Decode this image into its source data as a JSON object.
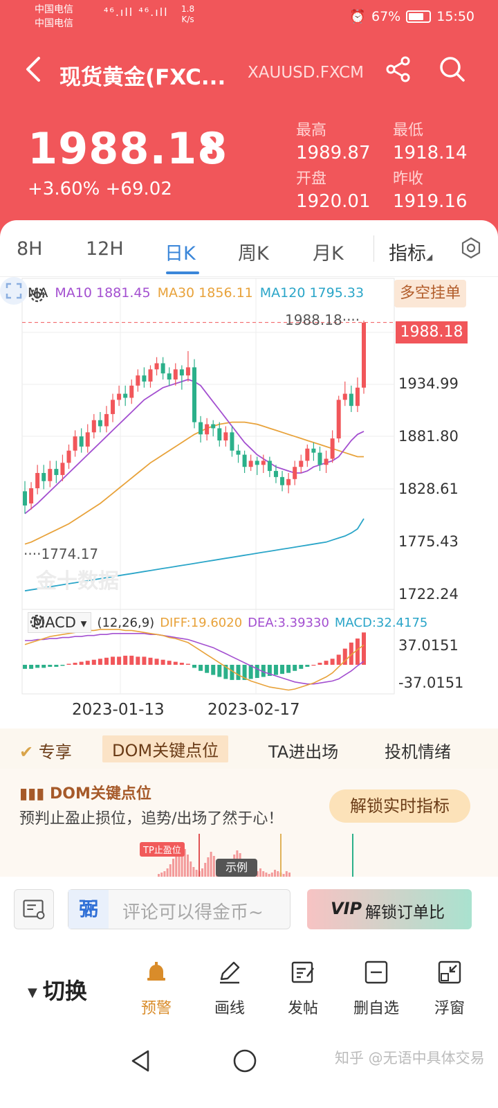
{
  "status": {
    "carrier1": "中国电信",
    "carrier2": "中国电信",
    "hd": "HD",
    "signal": "⁴⁶.ıll ⁴⁶.ıll",
    "speed_value": "1.8",
    "speed_unit": "K/s",
    "battery": "67%",
    "time": "15:50"
  },
  "header": {
    "title": "现货黄金(FXC...",
    "code": "XAUUSD.FXCM",
    "price": "1988.18",
    "change": "+3.60% +69.02",
    "stats": {
      "high_label": "最高",
      "high": "1989.87",
      "low_label": "最低",
      "low": "1918.14",
      "open_label": "开盘",
      "open": "1920.01",
      "prev_label": "昨收",
      "prev": "1919.16"
    }
  },
  "tabs": [
    "8H",
    "12H",
    "日K",
    "周K",
    "月K"
  ],
  "active_tab": "日K",
  "indicator_tab": "指标",
  "chart": {
    "ma_label": "MA",
    "ma10": "MA10 1881.45",
    "ma30": "MA30 1856.11",
    "ma120": "MA120 1795.33",
    "dk_button": "多空挂单",
    "last_price_tag": "1988.18",
    "high_marker": "1988.18",
    "low_marker": "1774.17",
    "watermark": "金十数据",
    "axis": [
      "1934.99",
      "1881.80",
      "1828.61",
      "1775.43",
      "1722.24"
    ],
    "macd_label": "MACD",
    "macd_params": "(12,26,9)",
    "diff": "DIFF:19.6020",
    "dea": "DEA:3.39330",
    "macd_value": "MACD:32.4175",
    "macd_axis_top": "37.0151",
    "macd_axis_bottom": "-37.0151",
    "dates": [
      "2023-01-13",
      "2023-02-17"
    ],
    "colors": {
      "up": "#f1565a",
      "down": "#2bb08a",
      "ma10": "#a34fd0",
      "ma30": "#e8a23a",
      "ma120": "#2aa5c8"
    }
  },
  "chart_data": {
    "type": "candlestick",
    "candles": [
      [
        1822,
        1808,
        1832,
        1800
      ],
      [
        1810,
        1825,
        1831,
        1804
      ],
      [
        1825,
        1840,
        1848,
        1819
      ],
      [
        1840,
        1832,
        1848,
        1824
      ],
      [
        1832,
        1844,
        1852,
        1826
      ],
      [
        1844,
        1838,
        1852,
        1830
      ],
      [
        1838,
        1850,
        1858,
        1832
      ],
      [
        1850,
        1862,
        1868,
        1844
      ],
      [
        1862,
        1876,
        1882,
        1856
      ],
      [
        1876,
        1866,
        1884,
        1860
      ],
      [
        1866,
        1880,
        1888,
        1860
      ],
      [
        1880,
        1892,
        1898,
        1874
      ],
      [
        1892,
        1886,
        1900,
        1880
      ],
      [
        1886,
        1898,
        1906,
        1880
      ],
      [
        1898,
        1912,
        1918,
        1890
      ],
      [
        1912,
        1918,
        1926,
        1906
      ],
      [
        1918,
        1914,
        1926,
        1906
      ],
      [
        1914,
        1926,
        1932,
        1908
      ],
      [
        1926,
        1936,
        1942,
        1920
      ],
      [
        1936,
        1930,
        1944,
        1924
      ],
      [
        1930,
        1942,
        1946,
        1924
      ],
      [
        1942,
        1948,
        1954,
        1936
      ],
      [
        1948,
        1938,
        1954,
        1932
      ],
      [
        1938,
        1932,
        1944,
        1926
      ],
      [
        1932,
        1942,
        1948,
        1926
      ],
      [
        1942,
        1936,
        1946,
        1922
      ],
      [
        1936,
        1944,
        1960,
        1930
      ],
      [
        1944,
        1890,
        1952,
        1884
      ],
      [
        1890,
        1878,
        1896,
        1870
      ],
      [
        1878,
        1888,
        1894,
        1872
      ],
      [
        1888,
        1884,
        1892,
        1876
      ],
      [
        1884,
        1872,
        1890,
        1866
      ],
      [
        1872,
        1880,
        1886,
        1866
      ],
      [
        1880,
        1862,
        1886,
        1856
      ],
      [
        1862,
        1858,
        1868,
        1850
      ],
      [
        1858,
        1846,
        1862,
        1840
      ],
      [
        1846,
        1852,
        1858,
        1842
      ],
      [
        1852,
        1848,
        1856,
        1838
      ],
      [
        1848,
        1852,
        1858,
        1840
      ],
      [
        1852,
        1842,
        1856,
        1836
      ],
      [
        1842,
        1836,
        1848,
        1830
      ],
      [
        1836,
        1828,
        1842,
        1822
      ],
      [
        1828,
        1834,
        1840,
        1820
      ],
      [
        1834,
        1846,
        1852,
        1828
      ],
      [
        1846,
        1852,
        1858,
        1840
      ],
      [
        1852,
        1864,
        1868,
        1846
      ],
      [
        1864,
        1860,
        1870,
        1852
      ],
      [
        1860,
        1848,
        1866,
        1842
      ],
      [
        1848,
        1854,
        1862,
        1840
      ],
      [
        1854,
        1874,
        1882,
        1850
      ],
      [
        1874,
        1912,
        1916,
        1870
      ],
      [
        1912,
        1918,
        1930,
        1906
      ],
      [
        1918,
        1906,
        1926,
        1900
      ],
      [
        1906,
        1924,
        1934,
        1900
      ],
      [
        1924,
        1988,
        1990,
        1918
      ]
    ],
    "ma10": [
      1800,
      1805,
      1810,
      1816,
      1822,
      1828,
      1834,
      1840,
      1846,
      1852,
      1858,
      1864,
      1870,
      1876,
      1882,
      1888,
      1894,
      1900,
      1906,
      1912,
      1916,
      1920,
      1924,
      1926,
      1928,
      1930,
      1932,
      1930,
      1926,
      1918,
      1910,
      1902,
      1894,
      1886,
      1878,
      1870,
      1864,
      1858,
      1854,
      1850,
      1846,
      1844,
      1842,
      1840,
      1840,
      1842,
      1846,
      1848,
      1850,
      1852,
      1856,
      1864,
      1872,
      1878,
      1881
    ],
    "ma30": [
      1770,
      1772,
      1775,
      1778,
      1781,
      1784,
      1787,
      1790,
      1794,
      1798,
      1802,
      1806,
      1810,
      1815,
      1820,
      1825,
      1830,
      1835,
      1840,
      1845,
      1850,
      1854,
      1858,
      1862,
      1866,
      1870,
      1874,
      1878,
      1881,
      1884,
      1886,
      1888,
      1889,
      1890,
      1890,
      1890,
      1889,
      1888,
      1886,
      1884,
      1882,
      1880,
      1878,
      1876,
      1874,
      1872,
      1870,
      1868,
      1866,
      1864,
      1862,
      1860,
      1858,
      1856,
      1856
    ],
    "ma120": [
      1724,
      1725,
      1726,
      1727,
      1728,
      1729,
      1730,
      1731,
      1732,
      1733,
      1734,
      1735,
      1736,
      1737,
      1738,
      1739,
      1740,
      1741,
      1742,
      1743,
      1744,
      1745,
      1746,
      1747,
      1748,
      1749,
      1750,
      1751,
      1752,
      1753,
      1754,
      1755,
      1756,
      1757,
      1758,
      1759,
      1760,
      1761,
      1762,
      1763,
      1764,
      1765,
      1766,
      1767,
      1768,
      1769,
      1770,
      1771,
      1772,
      1774,
      1776,
      1778,
      1781,
      1785,
      1795
    ],
    "macd_hist": [
      -4,
      -4,
      -3,
      -3,
      -2,
      -2,
      -1,
      1,
      2,
      3,
      4,
      5,
      6,
      7,
      8,
      8,
      9,
      9,
      8,
      8,
      7,
      6,
      5,
      4,
      3,
      2,
      1,
      -3,
      -6,
      -8,
      -10,
      -12,
      -14,
      -15,
      -15,
      -15,
      -14,
      -13,
      -12,
      -11,
      -10,
      -9,
      -8,
      -6,
      -4,
      -2,
      0,
      2,
      4,
      6,
      10,
      16,
      22,
      26,
      32
    ],
    "diff": [
      20,
      22,
      24,
      26,
      28,
      29,
      30,
      31,
      32,
      33,
      34,
      34,
      35,
      35,
      35,
      35,
      34,
      34,
      33,
      32,
      31,
      30,
      29,
      27,
      26,
      24,
      22,
      18,
      14,
      10,
      6,
      2,
      -2,
      -6,
      -10,
      -13,
      -16,
      -18,
      -20,
      -22,
      -23,
      -24,
      -25,
      -24,
      -22,
      -20,
      -18,
      -15,
      -12,
      -8,
      -2,
      4,
      10,
      15,
      19.6
    ],
    "dea": [
      24,
      24,
      25,
      25,
      26,
      26,
      27,
      27,
      28,
      28,
      29,
      29,
      30,
      30,
      31,
      31,
      31,
      31,
      31,
      31,
      30,
      30,
      29,
      28,
      27,
      26,
      25,
      23,
      21,
      19,
      17,
      14,
      11,
      8,
      5,
      2,
      -1,
      -4,
      -7,
      -9,
      -11,
      -13,
      -15,
      -17,
      -18,
      -19,
      -19,
      -18,
      -17,
      -16,
      -14,
      -10,
      -6,
      -1,
      3.4
    ]
  },
  "features": {
    "exclusive": "专享",
    "dom": "DOM关键点位",
    "ta": "TA进出场",
    "sentiment": "投机情绪"
  },
  "dom_panel": {
    "title": "DOM关键点位",
    "desc": "预判止盈止损位，追势/出场了然于心！",
    "unlock": "解锁实时指标",
    "tp_badge": "TP止盈位",
    "example": "示例"
  },
  "comment_bar": {
    "avatar": "弻",
    "placeholder": "评论可以得金币~",
    "vip_logo": "VIP",
    "vip_text": "解锁订单比"
  },
  "toolbar": {
    "switch": "切换",
    "alert": "预警",
    "draw": "画线",
    "post": "发帖",
    "remove": "删自选",
    "float": "浮窗"
  },
  "credit": "知乎 @无语中具体交易"
}
